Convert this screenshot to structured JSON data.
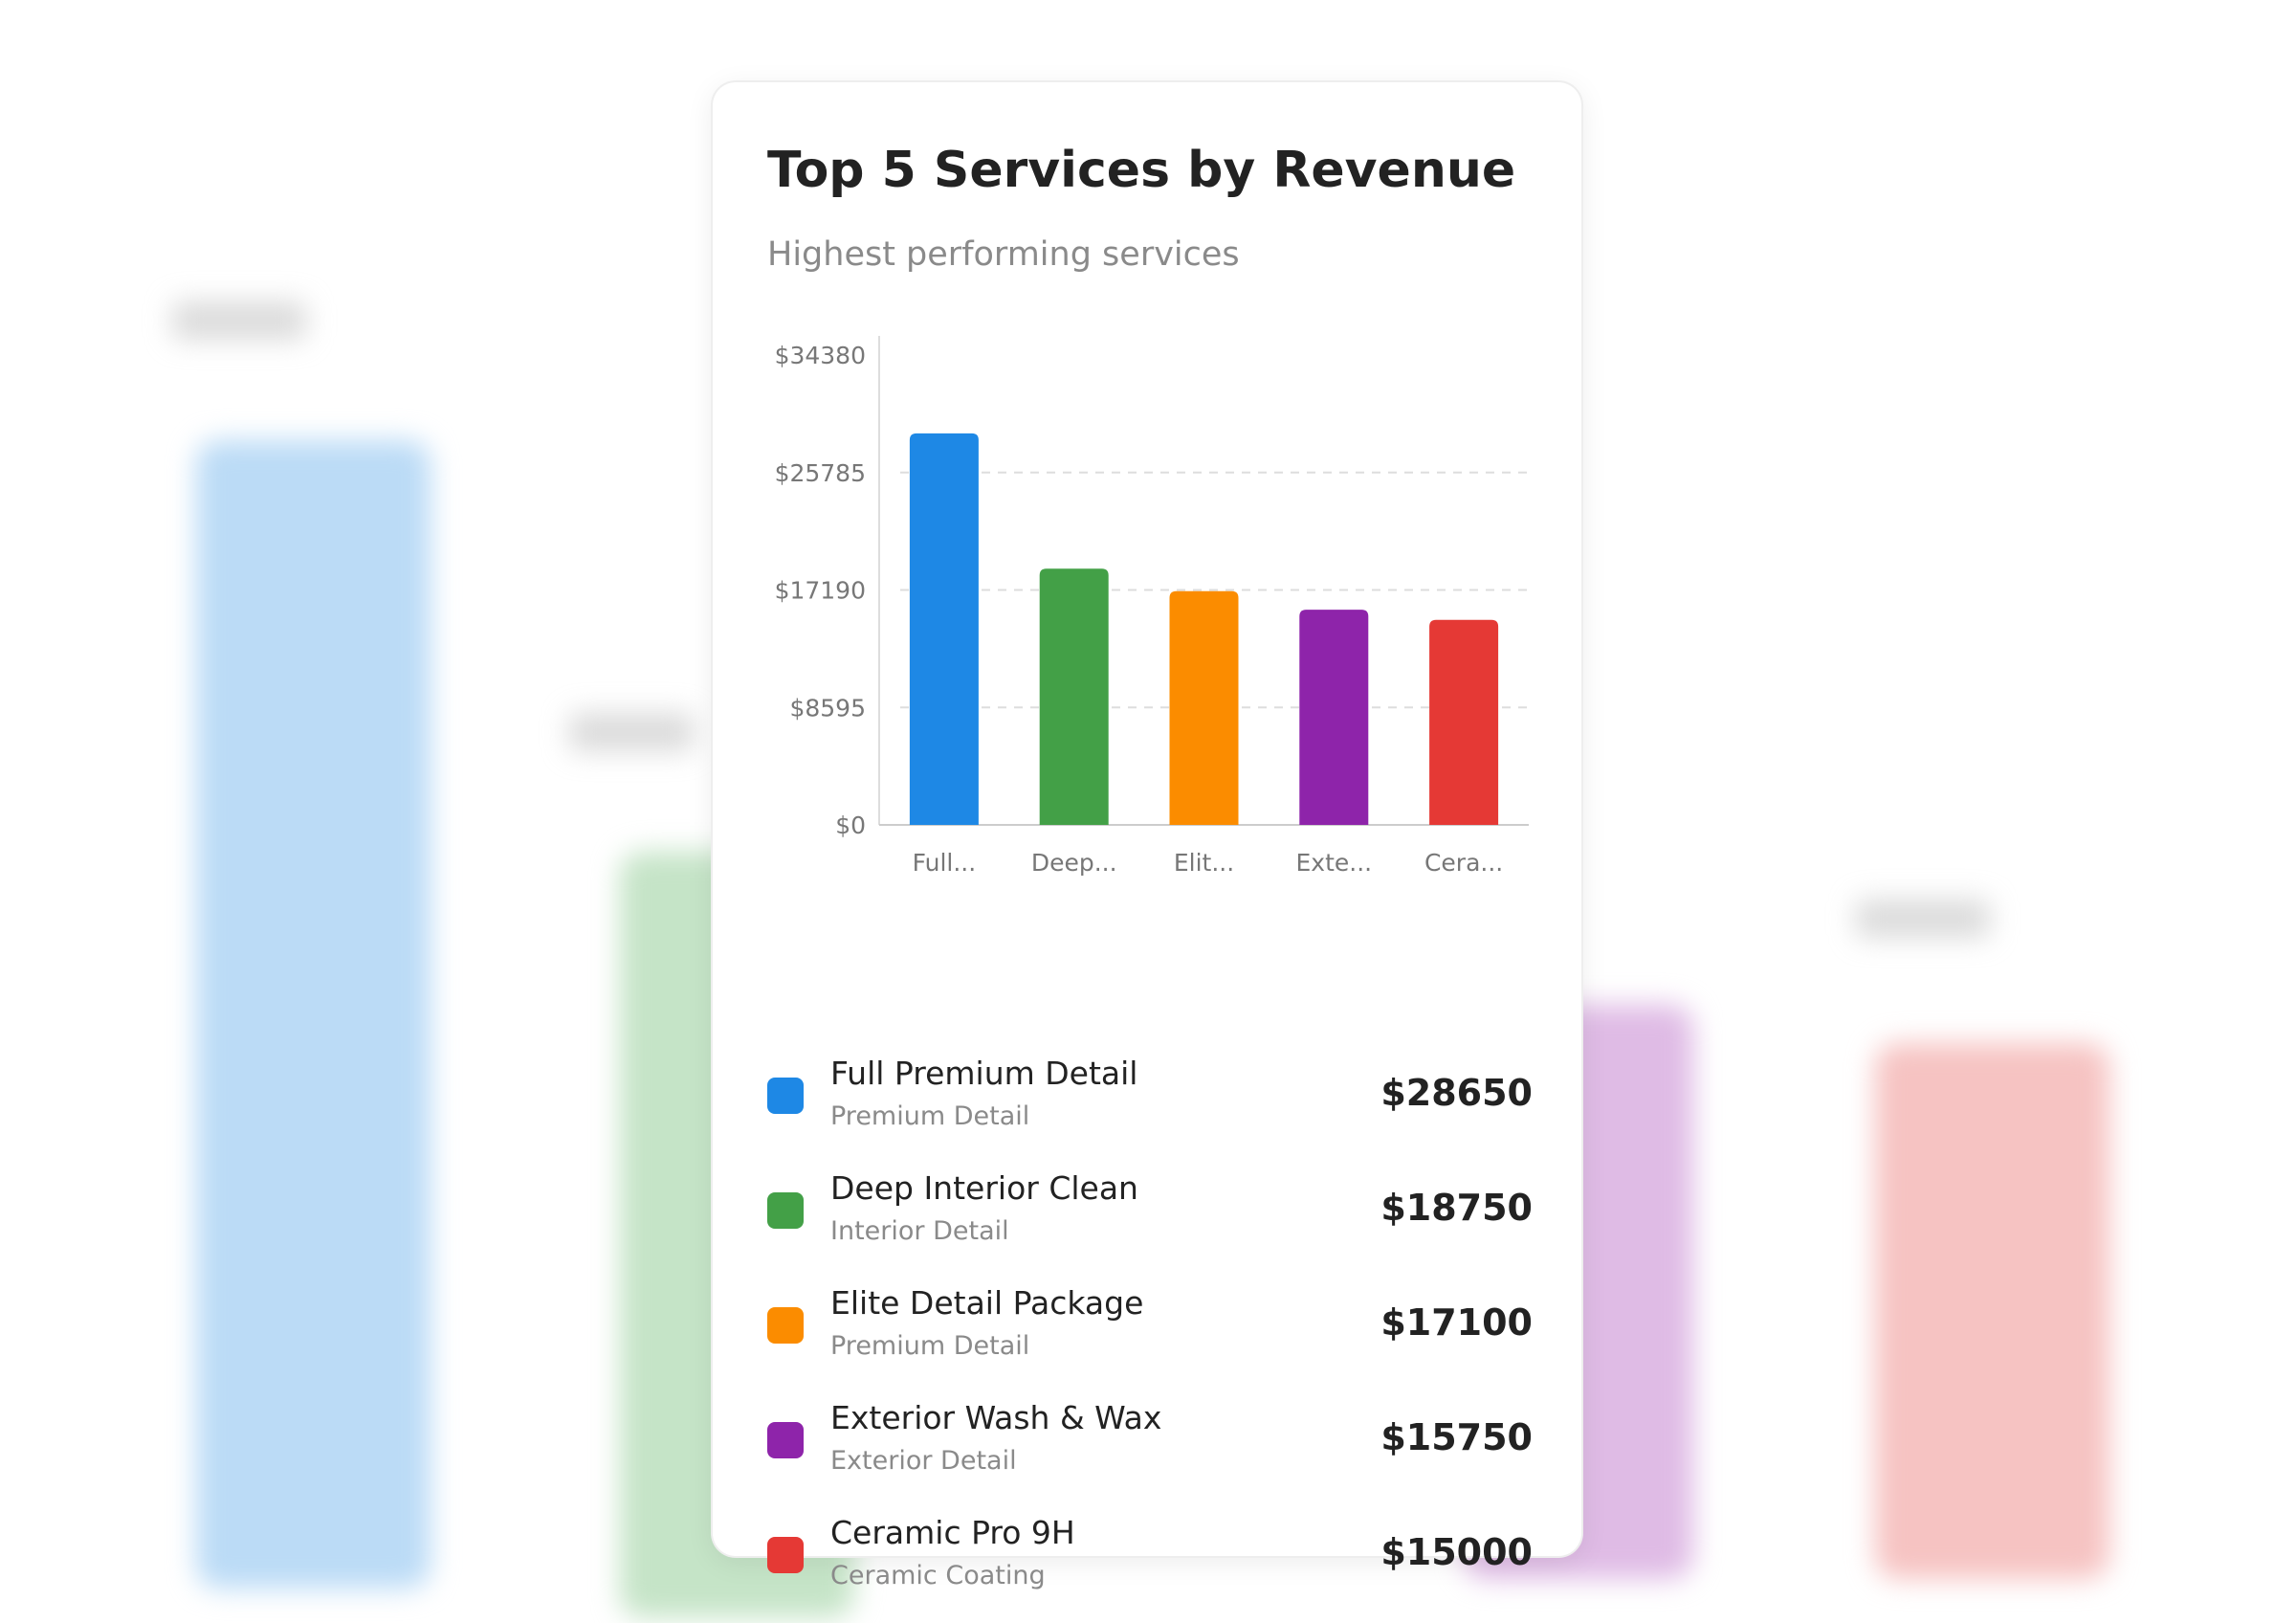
{
  "card": {
    "title": "Top 5 Services by Revenue",
    "subtitle": "Highest performing services"
  },
  "chart_data": {
    "type": "bar",
    "title": "Top 5 Services by Revenue",
    "subtitle": "Highest performing services",
    "categories": [
      "Full...",
      "Deep...",
      "Elit...",
      "Exte...",
      "Cera..."
    ],
    "values": [
      28650,
      18750,
      17100,
      15750,
      15000
    ],
    "colors": [
      "#1e88e5",
      "#43a047",
      "#fb8c00",
      "#8e24aa",
      "#e53935"
    ],
    "yticks": [
      0,
      8595,
      17190,
      25785,
      34380
    ],
    "ytick_labels": [
      "$0",
      "$8595",
      "$17190",
      "$25785",
      "$34380"
    ],
    "ylim": [
      0,
      34380
    ],
    "grid": true,
    "legend_position": "bottom"
  },
  "legend": [
    {
      "name": "Full Premium Detail",
      "category": "Premium Detail",
      "value": "$28650",
      "color": "#1e88e5"
    },
    {
      "name": "Deep Interior Clean",
      "category": "Interior Detail",
      "value": "$18750",
      "color": "#43a047"
    },
    {
      "name": "Elite Detail Package",
      "category": "Premium Detail",
      "value": "$17100",
      "color": "#fb8c00"
    },
    {
      "name": "Exterior Wash & Wax",
      "category": "Exterior Detail",
      "value": "$15750",
      "color": "#8e24aa"
    },
    {
      "name": "Ceramic Pro 9H",
      "category": "Ceramic Coating",
      "value": "$15000",
      "color": "#e53935"
    }
  ]
}
